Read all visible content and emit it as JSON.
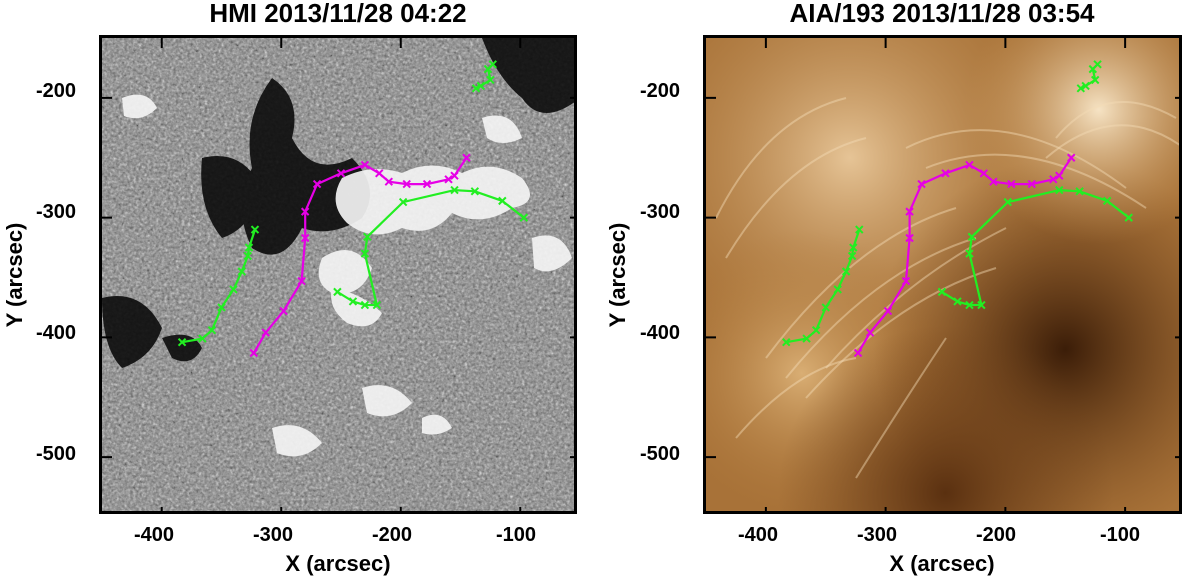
{
  "figure": {
    "panels": [
      {
        "id": "hmi",
        "title": "HMI 2013/11/28 04:22",
        "xlabel": "X (arcsec)",
        "ylabel": "Y (arcsec)",
        "xticks": [
          "-400",
          "-300",
          "-200",
          "-100"
        ],
        "yticks": [
          "-200",
          "-300",
          "-400",
          "-500"
        ],
        "image": "HMI magnetogram (grayscale)"
      },
      {
        "id": "aia",
        "title": "AIA/193 2013/11/28 03:54",
        "xlabel": "X (arcsec)",
        "ylabel": "Y (arcsec)",
        "xticks": [
          "-400",
          "-300",
          "-200",
          "-100"
        ],
        "yticks": [
          "-200",
          "-300",
          "-400",
          "-500"
        ],
        "image": "AIA 193 EUV image (sepia)"
      }
    ],
    "axis_ranges": {
      "x": [
        -450,
        -50
      ],
      "y": [
        -550,
        -150
      ]
    },
    "line_colors": {
      "magenta": "#e600e6",
      "green": "#22ee22"
    }
  },
  "chart_data": {
    "type": "line",
    "xlabel": "X (arcsec)",
    "ylabel": "Y (arcsec)",
    "xlim": [
      -450,
      -50
    ],
    "ylim": [
      -550,
      -150
    ],
    "series": [
      {
        "color": "#e600e6",
        "points": [
          [
            -323,
            -413
          ],
          [
            -313,
            -396
          ],
          [
            -298,
            -378
          ],
          [
            -283,
            -353
          ],
          [
            -280,
            -317
          ],
          [
            -280,
            -295
          ],
          [
            -270,
            -272
          ],
          [
            -250,
            -263
          ],
          [
            -230,
            -256
          ],
          [
            -218,
            -263
          ],
          [
            -210,
            -270
          ],
          [
            -195,
            -272
          ],
          [
            -178,
            -272
          ],
          [
            -160,
            -268
          ],
          [
            -155,
            -265
          ],
          [
            -145,
            -250
          ]
        ]
      },
      {
        "color": "#22ee22",
        "points": [
          [
            -383,
            -404
          ],
          [
            -366,
            -401
          ],
          [
            -358,
            -394
          ],
          [
            -350,
            -375
          ],
          [
            -340,
            -360
          ],
          [
            -333,
            -345
          ],
          [
            -328,
            -332
          ],
          [
            -327,
            -325
          ],
          [
            -322,
            -310
          ]
        ]
      },
      {
        "color": "#22ee22",
        "points": [
          [
            -253,
            -362
          ],
          [
            -240,
            -370
          ],
          [
            -230,
            -373
          ],
          [
            -220,
            -373
          ],
          [
            -230,
            -330
          ],
          [
            -228,
            -316
          ],
          [
            -198,
            -287
          ],
          [
            -155,
            -277
          ],
          [
            -138,
            -278
          ],
          [
            -115,
            -286
          ],
          [
            -97,
            -300
          ]
        ]
      },
      {
        "color": "#22ee22",
        "points": [
          [
            -137,
            -192
          ],
          [
            -133,
            -190
          ],
          [
            -125,
            -185
          ],
          [
            -127,
            -176
          ],
          [
            -123,
            -172
          ]
        ]
      }
    ]
  }
}
